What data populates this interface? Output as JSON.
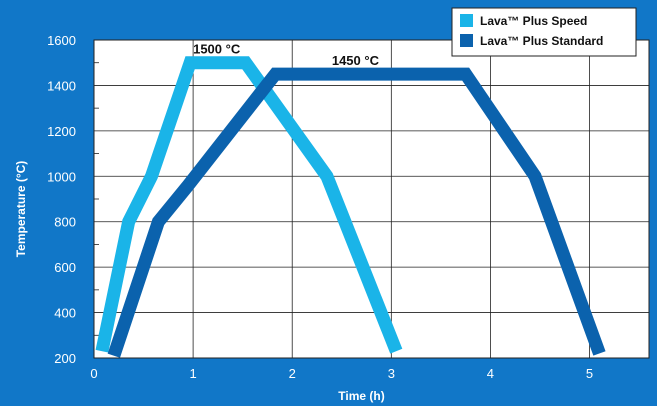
{
  "chart_data": {
    "type": "line",
    "title": "",
    "xlabel": "Time (h)",
    "ylabel": "Temperature (°C)",
    "xlim": [
      0,
      5.6
    ],
    "ylim": [
      200,
      1600
    ],
    "xticks": [
      0,
      1,
      2,
      3,
      4,
      5
    ],
    "yticks": [
      200,
      400,
      600,
      800,
      1000,
      1200,
      1400,
      1600
    ],
    "grid": true,
    "legend_position": "top-right",
    "series": [
      {
        "name": "Lava™ Plus Speed",
        "color": "#1ab4e8",
        "x": [
          0.08,
          0.35,
          0.58,
          0.97,
          1.53,
          2.35,
          3.05
        ],
        "y": [
          230,
          800,
          1000,
          1500,
          1500,
          1000,
          230
        ]
      },
      {
        "name": "Lava™ Plus Standard",
        "color": "#0b62ad",
        "x": [
          0.2,
          0.65,
          0.95,
          1.83,
          3.75,
          4.45,
          5.1
        ],
        "y": [
          210,
          800,
          960,
          1450,
          1450,
          1000,
          220
        ]
      }
    ],
    "annotations": [
      {
        "text": "1500 °C",
        "x": 1.0,
        "y": 1500
      },
      {
        "text": "1450 °C",
        "x": 2.4,
        "y": 1450
      }
    ]
  },
  "colors": {
    "background": "#1177c8",
    "plot_background": "#ffffff",
    "grid": "#222222"
  }
}
